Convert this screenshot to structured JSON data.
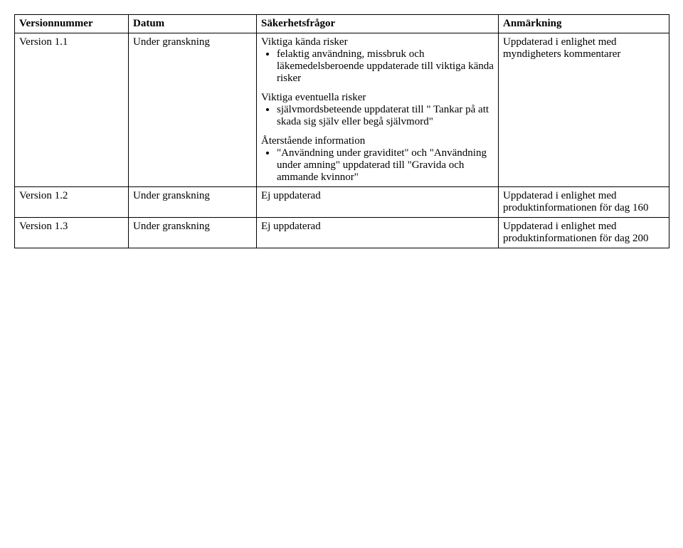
{
  "table": {
    "columns": [
      "Versionnummer",
      "Datum",
      "Säkerhetsfrågor",
      "Anmärkning"
    ],
    "rows": [
      {
        "version": "Version 1.1",
        "datum": "Under granskning",
        "safety": {
          "groups": [
            {
              "title": "Viktiga kända risker",
              "items": [
                "felaktig användning, missbruk och läkemedelsberoende uppdaterade till viktiga kända risker"
              ]
            },
            {
              "title": "Viktiga eventuella risker",
              "items": [
                "självmordsbeteende uppdaterat till \" Tankar på att skada sig själv eller begå självmord\""
              ]
            },
            {
              "title": "Återstående information",
              "items": [
                "\"Användning under graviditet\" och \"Användning under amning\" uppdaterad till \"Gravida och ammande kvinnor\""
              ]
            }
          ]
        },
        "note": "Uppdaterad i enlighet med myndigheters kommentarer"
      },
      {
        "version": "Version 1.2",
        "datum": "Under granskning",
        "safety_plain": "Ej uppdaterad",
        "note": "Uppdaterad i enlighet med produktinformationen för dag 160"
      },
      {
        "version": "Version 1.3",
        "datum": "Under granskning",
        "safety_plain": "Ej uppdaterad",
        "note": "Uppdaterad i enlighet med produktinformationen för dag 200"
      }
    ]
  }
}
